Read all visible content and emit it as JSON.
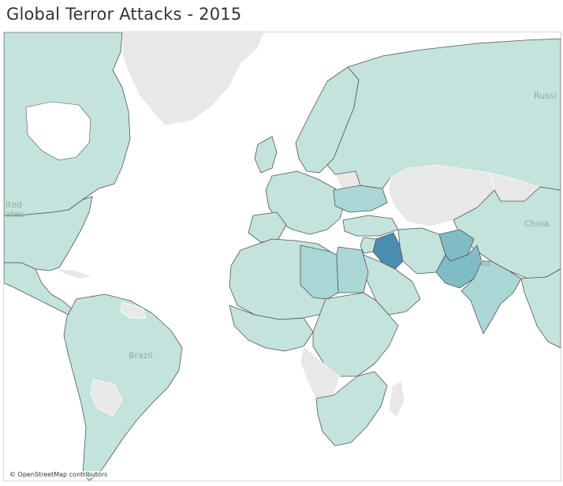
{
  "title": "Global Terror Attacks - 2015",
  "attribution": "© OpenStreetMap contributors",
  "map_labels": {
    "russia": "Russi",
    "united_states_1": "ited",
    "united_states_2": "ates",
    "china": "China",
    "india": "India",
    "brazil": "Brazil"
  },
  "colors": {
    "no_data": "#e8e8e8",
    "level_1": "#c4e3dc",
    "level_2": "#a9d7d6",
    "level_3": "#7fbdc6",
    "level_4": "#4a8db0",
    "border": "#555555"
  },
  "shaded_regions": [
    {
      "name": "russia",
      "level": 1
    },
    {
      "name": "canada",
      "level": 1
    },
    {
      "name": "united-states",
      "level": 1
    },
    {
      "name": "mexico",
      "level": 1
    },
    {
      "name": "south-america",
      "level": 1
    },
    {
      "name": "western-europe",
      "level": 1
    },
    {
      "name": "scandinavia",
      "level": 1
    },
    {
      "name": "ukraine",
      "level": 2
    },
    {
      "name": "north-africa",
      "level": 1
    },
    {
      "name": "egypt",
      "level": 2
    },
    {
      "name": "libya",
      "level": 2
    },
    {
      "name": "west-africa",
      "level": 1
    },
    {
      "name": "east-africa",
      "level": 1
    },
    {
      "name": "southern-africa",
      "level": 1
    },
    {
      "name": "turkey",
      "level": 1
    },
    {
      "name": "saudi-arabia",
      "level": 1
    },
    {
      "name": "iran",
      "level": 1
    },
    {
      "name": "iraq",
      "level": 4
    },
    {
      "name": "afghanistan",
      "level": 3
    },
    {
      "name": "pakistan",
      "level": 3
    },
    {
      "name": "india",
      "level": 2
    },
    {
      "name": "china",
      "level": 1
    },
    {
      "name": "southeast-asia",
      "level": 1
    }
  ]
}
